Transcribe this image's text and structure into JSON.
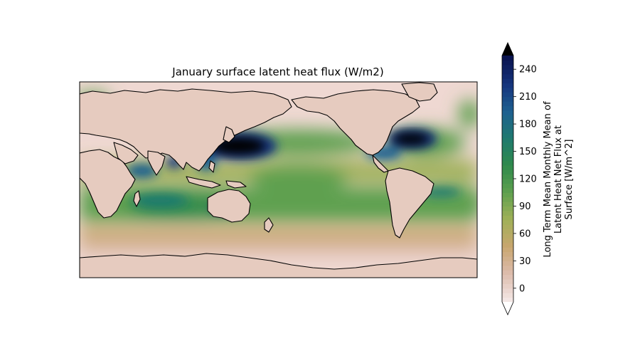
{
  "title": "January surface latent heat flux (W/m2)",
  "colorbar": {
    "label_lines": [
      "Long Term Mean Monthly Mean of",
      "Latent Heat Net Flux at",
      "Surface [W/m^2]"
    ],
    "min": -15,
    "max": 255,
    "ticks": [
      "0",
      "30",
      "60",
      "90",
      "120",
      "150",
      "180",
      "210",
      "240"
    ],
    "tick_values": [
      0,
      30,
      60,
      90,
      120,
      150,
      180,
      210,
      240
    ],
    "extend": "both",
    "colors": [
      "#f3e6e4",
      "#dcbbab",
      "#c8a66e",
      "#9fb058",
      "#5fa04f",
      "#2f8a4c",
      "#1f7a6e",
      "#1e6090",
      "#16357d",
      "#0a1450"
    ]
  },
  "map": {
    "projection": "PlateCarree",
    "central_longitude": 180,
    "background_color": "#efd8d2",
    "coastline_color": "#000000",
    "features": [
      {
        "name": "kuroshio-maximum",
        "value": 255
      },
      {
        "name": "gulf-stream-maximum",
        "value": 255
      },
      {
        "name": "arabian-sea-maximum",
        "value": 190
      },
      {
        "name": "south-indian-ocean-band",
        "value": 150
      },
      {
        "name": "tropical-pacific-band",
        "value": 110
      },
      {
        "name": "polar-regions",
        "value": 5
      }
    ]
  }
}
